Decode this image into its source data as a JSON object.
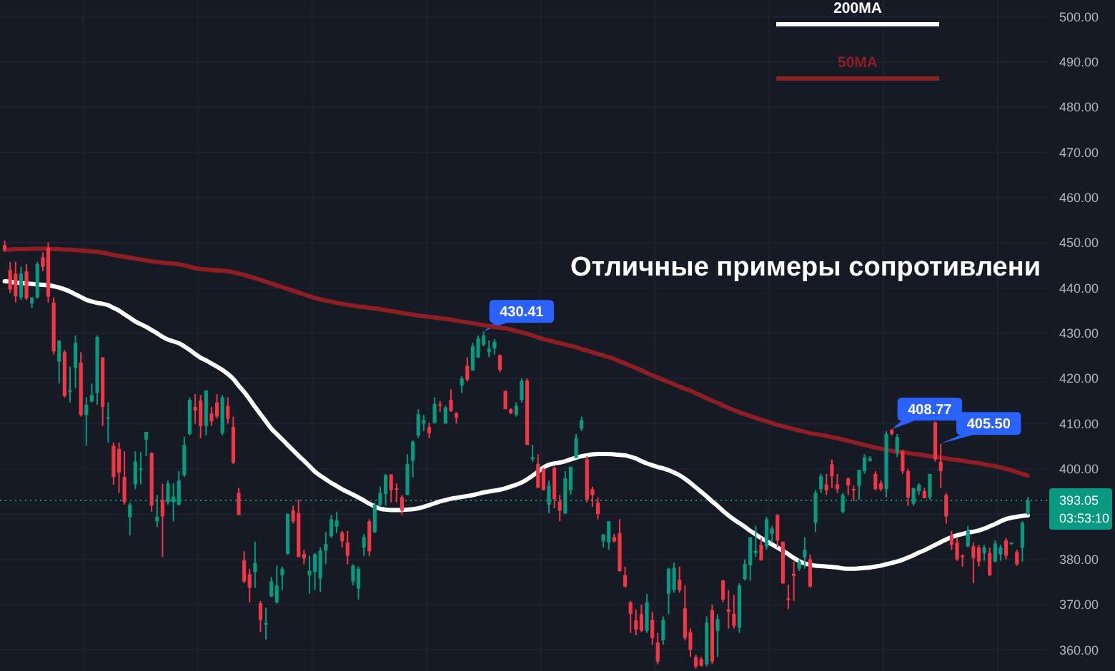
{
  "chart_data": {
    "type": "candlestick",
    "categories": [
      null,
      null,
      null,
      null,
      null,
      null,
      null,
      null,
      null,
      null,
      null,
      null,
      null,
      null,
      null,
      null,
      null,
      null,
      null,
      null,
      null,
      null,
      null,
      null,
      null,
      null,
      null,
      null,
      null,
      null,
      null,
      null,
      null,
      null,
      null,
      null,
      null,
      null,
      null,
      null,
      null,
      null,
      null,
      null,
      null,
      null,
      null,
      null,
      null,
      null,
      null,
      null,
      null,
      null,
      null,
      null,
      null,
      null,
      null,
      null,
      null,
      null,
      null,
      null,
      null,
      null,
      null,
      null,
      null,
      null,
      null,
      null,
      null,
      null,
      null,
      null,
      null,
      null,
      null,
      null,
      null,
      null,
      null,
      null,
      null,
      null,
      null,
      null,
      null,
      null,
      null,
      null,
      null,
      null,
      null,
      null,
      null,
      null,
      null,
      null,
      null,
      null,
      null,
      null,
      null,
      null,
      null,
      null,
      null,
      null,
      null,
      null,
      null,
      null,
      null,
      null,
      null,
      null,
      null,
      null,
      null,
      null,
      null,
      null,
      null,
      null,
      null,
      null,
      null,
      null,
      null,
      null,
      null,
      null,
      null,
      null,
      null,
      null,
      null,
      null,
      null,
      null,
      null,
      null,
      null,
      null,
      null,
      null,
      null,
      null,
      null,
      null,
      null,
      null,
      null,
      null,
      null,
      null,
      null,
      null,
      null,
      null,
      null,
      null,
      null,
      null,
      null,
      null,
      null,
      null,
      null,
      null,
      null,
      null,
      null,
      null,
      null,
      null,
      null,
      null,
      null,
      null,
      null,
      null,
      null,
      null,
      null,
      null,
      null
    ],
    "ohlc": [
      [
        449.5,
        450.5,
        448.0,
        448.5
      ],
      [
        444.0,
        445.8,
        438.9,
        439.7
      ],
      [
        443.2,
        445.8,
        436.8,
        438.2
      ],
      [
        437.9,
        444.7,
        437.4,
        443.2
      ],
      [
        443.7,
        445.3,
        437.4,
        437.7
      ],
      [
        436.6,
        437.9,
        435.6,
        437.9
      ],
      [
        437.9,
        445.8,
        437.6,
        445.3
      ],
      [
        446.8,
        447.9,
        443.7,
        444.7
      ],
      [
        448.9,
        450.1,
        436.8,
        438.1
      ],
      [
        436.8,
        437.9,
        425.3,
        426.0
      ],
      [
        423.7,
        428.4,
        418.9,
        428.4
      ],
      [
        425.8,
        426.3,
        415.8,
        416.1
      ],
      [
        417.0,
        422.6,
        414.7,
        417.4
      ],
      [
        422.3,
        429.5,
        417.9,
        427.9
      ],
      [
        423.5,
        425.8,
        411.6,
        411.9
      ],
      [
        411.9,
        415.8,
        405.1,
        414.2
      ],
      [
        414.9,
        418.9,
        414.7,
        416.3
      ],
      [
        416.8,
        429.5,
        414.2,
        429.2
      ],
      [
        424.7,
        424.7,
        409.5,
        413.7
      ],
      [
        411.1,
        414.7,
        405.8,
        411.4
      ],
      [
        405.1,
        405.8,
        396.5,
        398.2
      ],
      [
        404.4,
        405.8,
        394.7,
        399.2
      ],
      [
        398.2,
        403.9,
        392.1,
        392.6
      ],
      [
        389.3,
        392.6,
        385.3,
        392.1
      ],
      [
        396.6,
        403.9,
        395.5,
        401.6
      ],
      [
        399.8,
        403.7,
        396.6,
        400.0
      ],
      [
        406.5,
        408.2,
        402.8,
        408.2
      ],
      [
        403.5,
        403.7,
        390.5,
        391.9
      ],
      [
        388.4,
        394.2,
        387.1,
        389.4
      ],
      [
        393.2,
        396.8,
        380.5,
        389.5
      ],
      [
        392.6,
        397.4,
        392.1,
        396.8
      ],
      [
        392.6,
        396.8,
        388.4,
        393.9
      ],
      [
        392.1,
        399.5,
        391.9,
        397.4
      ],
      [
        398.6,
        407.1,
        398.2,
        405.3
      ],
      [
        407.7,
        415.8,
        407.4,
        415.3
      ],
      [
        413.7,
        416.5,
        410.0,
        412.9
      ],
      [
        415.1,
        416.3,
        406.8,
        409.5
      ],
      [
        409.5,
        417.4,
        407.4,
        417.4
      ],
      [
        412.3,
        413.7,
        409.5,
        410.5
      ],
      [
        414.7,
        416.5,
        411.1,
        411.6
      ],
      [
        407.9,
        416.3,
        407.4,
        415.8
      ],
      [
        413.9,
        415.8,
        410.0,
        411.1
      ],
      [
        409.3,
        411.6,
        401.1,
        401.4
      ],
      [
        394.7,
        395.8,
        389.8,
        389.8
      ],
      [
        379.8,
        381.8,
        374.7,
        375.1
      ],
      [
        376.7,
        377.9,
        370.5,
        373.7
      ],
      [
        377.2,
        383.9,
        373.7,
        379.2
      ],
      [
        370.3,
        370.8,
        363.9,
        366.6
      ],
      [
        365.6,
        369.3,
        362.3,
        365.8
      ],
      [
        371.8,
        376.1,
        371.6,
        375.1
      ],
      [
        370.5,
        378.6,
        370.2,
        374.2
      ],
      [
        376.5,
        378.4,
        373.2,
        377.9
      ],
      [
        381.2,
        390.2,
        381.0,
        390.0
      ],
      [
        390.8,
        391.9,
        387.9,
        388.4
      ],
      [
        390.2,
        393.2,
        380.5,
        380.5
      ],
      [
        381.2,
        382.1,
        378.9,
        380.2
      ],
      [
        376.5,
        380.8,
        372.4,
        377.5
      ],
      [
        377.2,
        381.4,
        373.2,
        381.1
      ],
      [
        375.8,
        382.6,
        372.8,
        381.9
      ],
      [
        381.9,
        386.0,
        378.9,
        383.4
      ],
      [
        385.1,
        389.8,
        384.7,
        388.9
      ],
      [
        387.2,
        390.5,
        385.8,
        388.6
      ],
      [
        385.9,
        386.3,
        382.6,
        384.0
      ],
      [
        383.7,
        386.3,
        378.9,
        380.8
      ],
      [
        375.1,
        378.9,
        374.2,
        378.6
      ],
      [
        373.5,
        378.4,
        371.1,
        377.9
      ],
      [
        382.6,
        385.6,
        380.7,
        384.9
      ],
      [
        388.4,
        388.9,
        380.7,
        381.8
      ],
      [
        386.0,
        392.6,
        385.8,
        392.1
      ],
      [
        392.1,
        396.1,
        391.6,
        394.7
      ],
      [
        394.4,
        398.9,
        391.9,
        398.6
      ],
      [
        398.8,
        398.8,
        392.6,
        395.3
      ],
      [
        395.6,
        396.8,
        392.6,
        395.4
      ],
      [
        393.7,
        394.2,
        389.8,
        390.8
      ],
      [
        394.2,
        403.2,
        394.2,
        401.1
      ],
      [
        401.8,
        406.3,
        398.1,
        406.0
      ],
      [
        407.4,
        413.2,
        406.8,
        412.1
      ],
      [
        410.0,
        411.9,
        408.4,
        410.8
      ],
      [
        409.2,
        410.2,
        406.8,
        407.9
      ],
      [
        410.2,
        415.8,
        410.0,
        414.4
      ],
      [
        414.2,
        415.0,
        412.6,
        414.0
      ],
      [
        410.0,
        414.0,
        410.0,
        413.6
      ],
      [
        415.3,
        417.6,
        412.6,
        412.8
      ],
      [
        412.3,
        412.6,
        410.0,
        411.3
      ],
      [
        418.4,
        420.5,
        416.8,
        420.0
      ],
      [
        422.8,
        424.7,
        419.3,
        419.7
      ],
      [
        421.8,
        427.9,
        421.6,
        427.1
      ],
      [
        424.7,
        429.5,
        424.5,
        428.9
      ],
      [
        427.4,
        430.41,
        427.1,
        429.5
      ],
      [
        425.8,
        428.4,
        424.7,
        426.6
      ],
      [
        426.6,
        428.7,
        425.3,
        428.1
      ],
      [
        425.1,
        425.3,
        421.4,
        421.9
      ],
      [
        417.2,
        417.4,
        413.2,
        413.2
      ],
      [
        413.2,
        413.4,
        412.1,
        412.3
      ],
      [
        411.9,
        414.7,
        411.6,
        413.9
      ],
      [
        415.3,
        420.0,
        414.7,
        419.5
      ],
      [
        419.5,
        420.0,
        405.3,
        405.3
      ],
      [
        402.1,
        405.3,
        401.6,
        402.6
      ],
      [
        401.1,
        403.2,
        395.8,
        395.8
      ],
      [
        400.0,
        400.2,
        395.3,
        395.3
      ],
      [
        392.1,
        397.4,
        390.2,
        396.3
      ],
      [
        400.2,
        400.5,
        391.3,
        393.3
      ],
      [
        392.8,
        394.2,
        388.4,
        390.8
      ],
      [
        390.2,
        399.5,
        390.0,
        397.9
      ],
      [
        395.3,
        400.5,
        394.2,
        400.5
      ],
      [
        402.4,
        407.7,
        402.4,
        406.8
      ],
      [
        408.9,
        411.6,
        408.4,
        410.8
      ],
      [
        402.1,
        402.8,
        392.6,
        393.2
      ],
      [
        395.5,
        396.1,
        391.6,
        394.2
      ],
      [
        392.6,
        393.7,
        388.9,
        390.0
      ],
      [
        384.0,
        385.6,
        382.6,
        385.5
      ],
      [
        383.7,
        388.4,
        382.1,
        388.4
      ],
      [
        384.9,
        385.6,
        383.7,
        384.0
      ],
      [
        385.8,
        388.9,
        377.2,
        377.4
      ],
      [
        376.5,
        378.4,
        373.7,
        374.0
      ],
      [
        370.5,
        370.8,
        363.7,
        367.9
      ],
      [
        366.5,
        368.9,
        363.2,
        364.5
      ],
      [
        367.9,
        370.0,
        363.9,
        364.2
      ],
      [
        364.2,
        372.3,
        363.7,
        370.5
      ],
      [
        366.6,
        368.4,
        361.1,
        362.6
      ],
      [
        361.6,
        363.7,
        356.8,
        357.4
      ],
      [
        362.1,
        367.4,
        361.1,
        366.6
      ],
      [
        372.4,
        378.1,
        367.9,
        377.9
      ],
      [
        373.2,
        379.3,
        372.6,
        378.1
      ],
      [
        375.5,
        378.4,
        372.6,
        373.2
      ],
      [
        369.2,
        374.2,
        362.1,
        362.6
      ],
      [
        363.9,
        364.7,
        358.4,
        360.0
      ],
      [
        358.4,
        358.9,
        355.8,
        356.3
      ],
      [
        357.9,
        358.4,
        356.3,
        356.5
      ],
      [
        356.8,
        367.4,
        356.3,
        366.0
      ],
      [
        368.7,
        370.0,
        356.8,
        357.4
      ],
      [
        364.2,
        367.9,
        358.4,
        366.8
      ],
      [
        375.3,
        375.5,
        370.5,
        371.1
      ],
      [
        368.9,
        373.2,
        364.7,
        368.4
      ],
      [
        367.9,
        372.1,
        364.7,
        365.3
      ],
      [
        364.9,
        374.7,
        363.7,
        374.2
      ],
      [
        375.6,
        380.0,
        375.3,
        379.0
      ],
      [
        378.7,
        384.9,
        375.3,
        384.9
      ],
      [
        381.4,
        387.4,
        380.5,
        381.9
      ],
      [
        383.2,
        384.7,
        379.7,
        379.8
      ],
      [
        382.8,
        389.4,
        382.1,
        388.9
      ],
      [
        385.6,
        387.4,
        383.7,
        386.8
      ],
      [
        389.8,
        390.0,
        382.6,
        384.2
      ],
      [
        383.9,
        383.9,
        374.5,
        374.7
      ],
      [
        371.3,
        374.4,
        369.0,
        371.1
      ],
      [
        376.8,
        379.5,
        370.8,
        376.3
      ],
      [
        377.9,
        380.0,
        377.4,
        379.5
      ],
      [
        380.5,
        384.9,
        377.9,
        382.1
      ],
      [
        380.0,
        381.1,
        373.7,
        374.0
      ],
      [
        388.1,
        395.3,
        386.0,
        394.7
      ],
      [
        395.5,
        398.9,
        394.7,
        398.4
      ],
      [
        396.6,
        398.9,
        394.2,
        395.3
      ],
      [
        401.1,
        402.1,
        395.8,
        398.4
      ],
      [
        396.6,
        398.9,
        394.7,
        395.5
      ],
      [
        390.5,
        394.7,
        390.2,
        394.2
      ],
      [
        397.9,
        398.1,
        394.2,
        396.3
      ],
      [
        395.5,
        396.3,
        392.9,
        395.3
      ],
      [
        396.3,
        399.8,
        393.2,
        399.8
      ],
      [
        399.5,
        403.2,
        398.9,
        402.6
      ],
      [
        401.8,
        402.8,
        401.6,
        402.3
      ],
      [
        398.9,
        399.5,
        395.3,
        395.5
      ],
      [
        396.8,
        397.4,
        395.1,
        395.5
      ],
      [
        395.5,
        408.4,
        393.7,
        407.7
      ],
      [
        408.7,
        408.77,
        407.4,
        407.7
      ],
      [
        403.7,
        407.7,
        402.6,
        407.1
      ],
      [
        403.9,
        404.2,
        398.9,
        399.5
      ],
      [
        399.5,
        400.0,
        391.9,
        393.7
      ],
      [
        392.3,
        395.8,
        391.9,
        395.8
      ],
      [
        395.1,
        396.8,
        394.2,
        396.5
      ],
      [
        395.1,
        395.8,
        393.5,
        393.5
      ],
      [
        393.7,
        398.9,
        393.2,
        398.9
      ],
      [
        410.3,
        410.5,
        401.6,
        402.1
      ],
      [
        401.6,
        405.5,
        395.8,
        399.5
      ],
      [
        394.2,
        394.7,
        387.9,
        389.5
      ],
      [
        385.3,
        386.3,
        382.1,
        383.2
      ],
      [
        383.7,
        384.7,
        379.7,
        380.0
      ],
      [
        380.8,
        381.1,
        378.4,
        380.5
      ],
      [
        382.9,
        387.4,
        382.6,
        386.3
      ],
      [
        382.9,
        383.7,
        374.7,
        380.3
      ],
      [
        382.6,
        383.2,
        378.4,
        379.5
      ],
      [
        381.4,
        383.2,
        379.7,
        382.6
      ],
      [
        381.4,
        382.6,
        376.3,
        376.5
      ],
      [
        379.5,
        384.2,
        379.3,
        383.5
      ],
      [
        381.1,
        383.2,
        379.7,
        382.6
      ],
      [
        384.2,
        384.7,
        380.0,
        380.8
      ],
      [
        383.4,
        383.7,
        383.2,
        383.7
      ],
      [
        381.6,
        382.1,
        378.6,
        378.9
      ],
      [
        382.6,
        388.4,
        379.5,
        388.1
      ],
      [
        390.0,
        393.8,
        389.8,
        393.05
      ]
    ],
    "colors": [
      "#f23645",
      "#f23645",
      "#f23645",
      "#089981",
      "#f23645",
      "#089981",
      "#089981",
      "#f23645",
      "#f23645",
      "#f23645",
      "#089981",
      "#f23645",
      "#089981",
      "#089981",
      "#f23645",
      "#089981",
      "#089981",
      "#089981",
      "#f23645",
      "#089981",
      "#f23645",
      "#f23645",
      "#f23645",
      "#089981",
      "#089981",
      "#089981",
      "#089981",
      "#f23645",
      "#089981",
      "#f23645",
      "#089981",
      "#089981",
      "#089981",
      "#089981",
      "#089981",
      "#f23645",
      "#f23645",
      "#089981",
      "#f23645",
      "#f23645",
      "#089981",
      "#f23645",
      "#f23645",
      "#f23645",
      "#f23645",
      "#f23645",
      "#089981",
      "#f23645",
      "#089981",
      "#089981",
      "#089981",
      "#089981",
      "#089981",
      "#f23645",
      "#f23645",
      "#f23645",
      "#089981",
      "#089981",
      "#089981",
      "#089981",
      "#089981",
      "#089981",
      "#f23645",
      "#f23645",
      "#089981",
      "#089981",
      "#089981",
      "#f23645",
      "#089981",
      "#089981",
      "#089981",
      "#f23645",
      "#f23645",
      "#f23645",
      "#089981",
      "#089981",
      "#089981",
      "#089981",
      "#f23645",
      "#089981",
      "#f23645",
      "#089981",
      "#f23645",
      "#f23645",
      "#089981",
      "#f23645",
      "#089981",
      "#089981",
      "#089981",
      "#089981",
      "#089981",
      "#f23645",
      "#f23645",
      "#f23645",
      "#089981",
      "#089981",
      "#f23645",
      "#089981",
      "#f23645",
      "#f23645",
      "#089981",
      "#f23645",
      "#f23645",
      "#089981",
      "#089981",
      "#089981",
      "#089981",
      "#f23645",
      "#f23645",
      "#f23645",
      "#089981",
      "#089981",
      "#f23645",
      "#f23645",
      "#f23645",
      "#f23645",
      "#f23645",
      "#f23645",
      "#089981",
      "#f23645",
      "#f23645",
      "#089981",
      "#089981",
      "#089981",
      "#f23645",
      "#f23645",
      "#f23645",
      "#f23645",
      "#f23645",
      "#089981",
      "#f23645",
      "#089981",
      "#f23645",
      "#f23645",
      "#f23645",
      "#089981",
      "#089981",
      "#089981",
      "#089981",
      "#f23645",
      "#089981",
      "#089981",
      "#f23645",
      "#f23645",
      "#f23645",
      "#f23645",
      "#089981",
      "#089981",
      "#f23645",
      "#089981",
      "#089981",
      "#f23645",
      "#f23645",
      "#f23645",
      "#089981",
      "#f23645",
      "#f23645",
      "#089981",
      "#089981",
      "#089981",
      "#f23645",
      "#f23645",
      "#089981",
      "#f23645",
      "#089981",
      "#f23645",
      "#f23645",
      "#089981",
      "#089981",
      "#f23645",
      "#089981",
      "#f23645",
      "#f23645",
      "#f23645",
      "#f23645",
      "#f23645",
      "#f23645",
      "#089981",
      "#f23645",
      "#f23645",
      "#089981",
      "#f23645",
      "#089981",
      "#089981",
      "#f23645",
      "#089981",
      "#f23645",
      "#089981",
      "#089981"
    ],
    "series": [
      {
        "name": "200MA",
        "type": "line",
        "color": "#ffffff",
        "values": [
          441.5,
          441.4,
          441.2,
          441.1,
          441.0,
          440.9,
          440.8,
          440.7,
          440.6,
          440.4,
          440.1,
          439.7,
          439.2,
          438.6,
          438.0,
          437.4,
          437.0,
          436.7,
          436.5,
          436.2,
          435.6,
          435.0,
          434.2,
          433.4,
          432.6,
          432.0,
          431.4,
          430.7,
          430.0,
          429.2,
          428.6,
          428.2,
          427.8,
          427.1,
          426.3,
          425.4,
          424.6,
          424.0,
          423.3,
          422.6,
          421.9,
          421.0,
          419.9,
          418.4,
          417.0,
          415.4,
          413.7,
          412.1,
          410.5,
          408.9,
          407.7,
          406.5,
          405.3,
          404.1,
          402.9,
          401.8,
          400.6,
          399.4,
          398.5,
          397.7,
          396.9,
          396.2,
          395.5,
          394.9,
          394.3,
          393.7,
          393.0,
          392.3,
          391.7,
          391.2,
          391.0,
          390.9,
          390.9,
          390.9,
          391.0,
          391.1,
          391.3,
          391.6,
          392.0,
          392.4,
          392.8,
          393.1,
          393.4,
          393.6,
          393.8,
          394.0,
          394.2,
          394.5,
          394.8,
          395.0,
          395.2,
          395.4,
          395.7,
          396.1,
          396.5,
          397.0,
          397.7,
          398.5,
          399.4,
          400.3,
          400.9,
          401.2,
          401.4,
          401.7,
          402.1,
          402.5,
          402.8,
          403.0,
          403.2,
          403.3,
          403.3,
          403.3,
          403.2,
          403.1,
          403.0,
          402.7,
          402.3,
          401.7,
          401.2,
          400.8,
          400.4,
          400.1,
          399.7,
          399.2,
          398.6,
          397.8,
          396.9,
          395.9,
          394.9,
          393.9,
          392.8,
          391.8,
          390.7,
          389.7,
          388.8,
          388.0,
          387.2,
          386.3,
          385.5,
          384.7,
          384.0,
          383.3,
          382.6,
          381.9,
          381.1,
          380.3,
          379.6,
          379.1,
          378.8,
          378.6,
          378.5,
          378.4,
          378.3,
          378.2,
          378.0,
          377.9,
          377.9,
          378.0,
          378.1,
          378.2,
          378.4,
          378.6,
          378.9,
          379.2,
          379.5,
          379.9,
          380.4,
          380.9,
          381.5,
          382.0,
          382.6,
          383.2,
          383.8,
          384.4,
          384.9,
          385.3,
          385.6,
          385.9,
          386.1,
          386.4,
          386.8,
          387.3,
          387.8,
          388.4,
          388.9,
          389.2,
          389.4,
          389.6,
          389.7
        ]
      },
      {
        "name": "50MA",
        "type": "line",
        "color": "#8f1d24",
        "values": [
          448.5,
          448.5,
          448.6,
          448.6,
          448.6,
          448.7,
          448.7,
          448.7,
          448.7,
          448.6,
          448.6,
          448.5,
          448.5,
          448.4,
          448.3,
          448.2,
          448.1,
          448.0,
          447.8,
          447.6,
          447.3,
          447.1,
          446.9,
          446.7,
          446.5,
          446.3,
          446.1,
          445.9,
          445.8,
          445.6,
          445.5,
          445.4,
          445.3,
          445.0,
          444.7,
          444.4,
          444.2,
          444.1,
          444.0,
          443.9,
          443.8,
          443.7,
          443.5,
          443.2,
          442.9,
          442.5,
          442.2,
          441.8,
          441.4,
          441.0,
          440.6,
          440.2,
          439.8,
          439.4,
          439.0,
          438.6,
          438.2,
          437.8,
          437.5,
          437.2,
          437.0,
          436.7,
          436.5,
          436.3,
          436.1,
          435.9,
          435.8,
          435.6,
          435.5,
          435.3,
          435.1,
          434.9,
          434.7,
          434.5,
          434.3,
          434.1,
          433.9,
          433.8,
          433.6,
          433.5,
          433.3,
          433.2,
          433.0,
          432.8,
          432.6,
          432.4,
          432.2,
          432.0,
          431.8,
          431.6,
          431.4,
          431.2,
          431.1,
          430.8,
          430.5,
          430.2,
          429.9,
          429.5,
          429.1,
          428.7,
          428.4,
          428.1,
          427.8,
          427.5,
          427.2,
          426.9,
          426.5,
          426.2,
          425.8,
          425.4,
          425.1,
          424.7,
          424.3,
          423.8,
          423.3,
          422.8,
          422.3,
          421.8,
          421.2,
          420.7,
          420.2,
          419.7,
          419.2,
          418.7,
          418.2,
          417.7,
          417.3,
          416.7,
          416.2,
          415.6,
          415.1,
          414.6,
          414.0,
          413.5,
          413.0,
          412.5,
          412.1,
          411.7,
          411.3,
          410.9,
          410.5,
          410.1,
          409.7,
          409.4,
          409.1,
          408.8,
          408.5,
          408.2,
          407.9,
          407.7,
          407.5,
          407.3,
          407.0,
          406.8,
          406.5,
          406.2,
          405.9,
          405.6,
          405.3,
          405.0,
          404.7,
          404.5,
          404.2,
          404.0,
          403.8,
          403.7,
          403.5,
          403.3,
          403.2,
          403.0,
          402.8,
          402.7,
          402.5,
          402.3,
          402.1,
          402.0,
          401.8,
          401.6,
          401.4,
          401.3,
          401.0,
          400.8,
          400.6,
          400.3,
          400.0,
          399.7,
          399.3,
          398.9,
          398.5
        ]
      }
    ],
    "ylim": [
      355.3,
      503.7
    ],
    "yticks": [
      {
        "value": 360,
        "label": "360.00"
      },
      {
        "value": 370,
        "label": "370.00"
      },
      {
        "value": 380,
        "label": "380.00"
      },
      {
        "value": 390,
        "label": null
      },
      {
        "value": 400,
        "label": "400.00"
      },
      {
        "value": 410,
        "label": "410.00"
      },
      {
        "value": 420,
        "label": "420.00"
      },
      {
        "value": 430,
        "label": "430.00"
      },
      {
        "value": 440,
        "label": "440.00"
      },
      {
        "value": 450,
        "label": "450.00"
      },
      {
        "value": 460,
        "label": "460.00"
      },
      {
        "value": 470,
        "label": "470.00"
      },
      {
        "value": 480,
        "label": "480.00"
      },
      {
        "value": 490,
        "label": "490.00"
      },
      {
        "value": 500,
        "label": "500.00"
      }
    ],
    "tick_labels": "y",
    "grid": true,
    "legend": "top right",
    "ref_lines": [
      {
        "axis": "y",
        "value": 393.05,
        "label": "393.05",
        "color": "#089981",
        "line_style": "dotted"
      }
    ],
    "annotations": [
      "Отличные примеры сопротивлени",
      "03:53:10",
      "405.50",
      {
        "text": "430.41",
        "y": 430.41
      },
      {
        "text": "408.77",
        "y": 408.77
      }
    ]
  }
}
